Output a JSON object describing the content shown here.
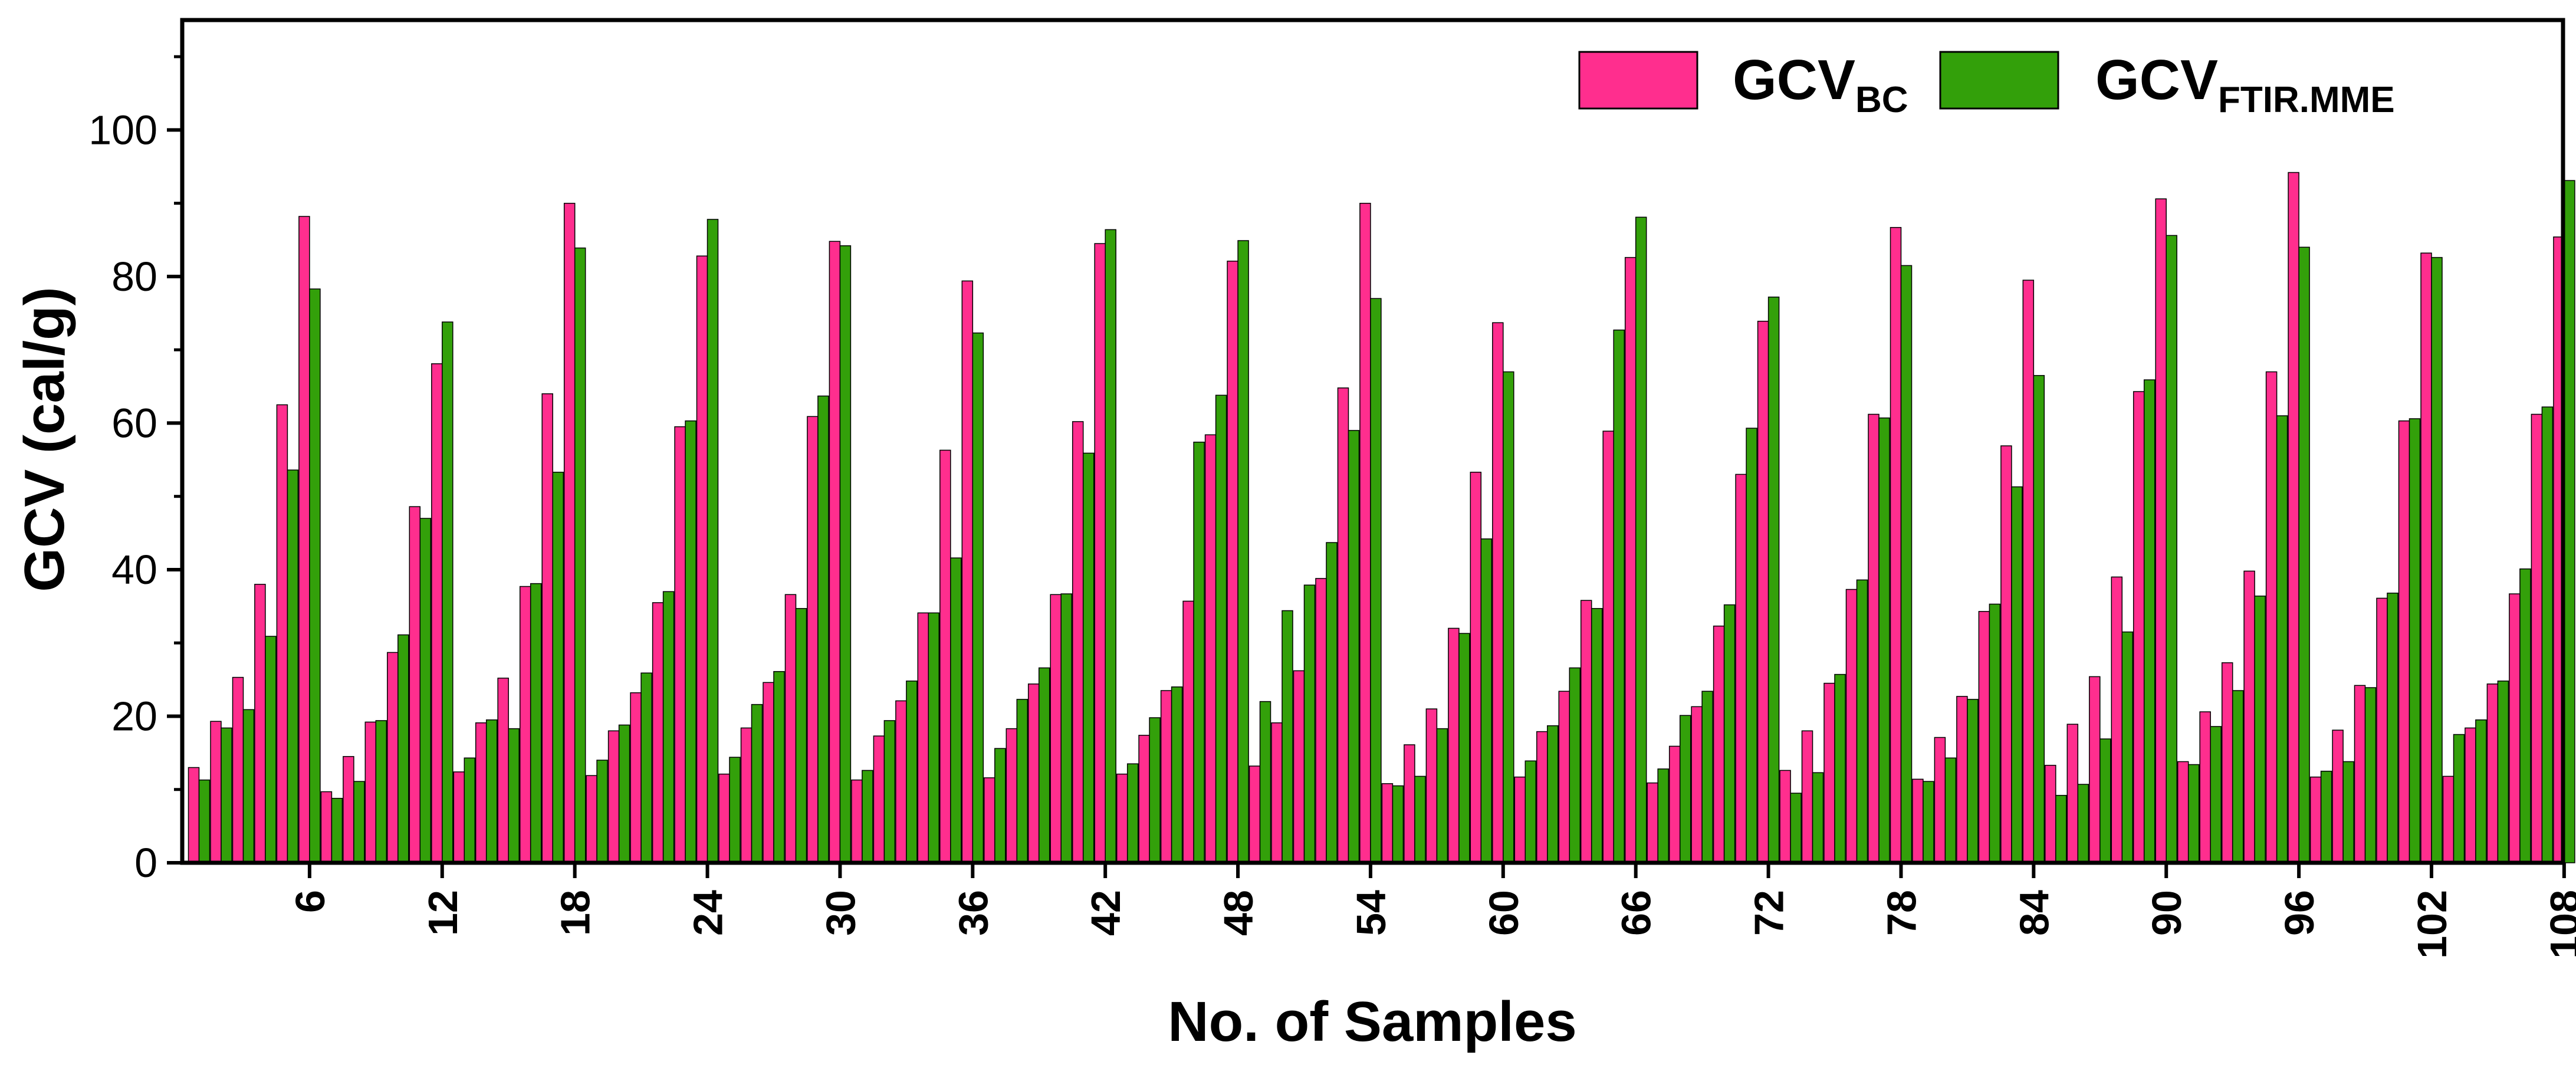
{
  "chart_data": {
    "type": "bar",
    "title": "",
    "xlabel": "No. of Samples",
    "ylabel": "GCV (cal/g)",
    "ylim": [
      0,
      115
    ],
    "yticks": [
      0,
      20,
      40,
      60,
      80,
      100
    ],
    "xtick_samples": [
      6,
      12,
      18,
      24,
      30,
      36,
      42,
      48,
      54,
      60,
      66,
      72,
      78,
      84,
      90,
      96,
      102,
      108
    ],
    "xtick_labels": [
      "6",
      "12",
      "18",
      "24",
      "30",
      "36",
      "42",
      "48",
      "54",
      "60",
      "66",
      "72",
      "78",
      "84",
      "90",
      "96",
      "102",
      "108"
    ],
    "sample_count": 108,
    "legend_position": "top-right",
    "series": [
      {
        "name": "GCV_BC",
        "legend_main": "GCV",
        "legend_sub": "BC",
        "color": "#ff2e8e",
        "values": [
          13.0,
          19.3,
          25.3,
          38.0,
          62.5,
          88.2,
          9.7,
          14.5,
          19.2,
          28.7,
          48.6,
          68.1,
          12.4,
          19.1,
          25.2,
          37.7,
          64.0,
          90.0,
          11.9,
          18.0,
          23.2,
          35.5,
          59.5,
          82.8,
          12.1,
          18.4,
          24.6,
          36.6,
          60.9,
          84.8,
          11.3,
          17.3,
          22.1,
          34.1,
          56.3,
          79.4,
          11.6,
          18.3,
          24.4,
          36.6,
          60.2,
          84.5,
          12.1,
          17.4,
          23.5,
          35.7,
          58.4,
          82.1,
          13.2,
          19.1,
          26.2,
          38.8,
          64.8,
          90.0,
          10.8,
          16.1,
          21.0,
          32.0,
          53.3,
          73.7,
          11.7,
          17.9,
          23.4,
          35.8,
          58.9,
          82.6,
          10.9,
          15.9,
          21.3,
          32.3,
          53.0,
          73.9,
          12.6,
          18.0,
          24.5,
          37.3,
          61.2,
          86.7,
          11.4,
          17.1,
          22.7,
          34.3,
          56.9,
          79.5,
          13.3,
          18.9,
          25.4,
          39.0,
          64.3,
          90.6,
          13.8,
          20.6,
          27.3,
          39.8,
          67.0,
          94.2,
          11.7,
          18.1,
          24.2,
          36.1,
          60.3,
          83.2,
          11.8,
          18.4,
          24.4,
          36.7,
          61.2,
          85.4
        ]
      },
      {
        "name": "GCV_FTIR.MME",
        "legend_main": "GCV",
        "legend_sub": "FTIR.MME",
        "color": "#33a00a",
        "values": [
          11.3,
          18.4,
          20.9,
          30.9,
          53.6,
          78.3,
          8.8,
          11.1,
          19.4,
          31.1,
          47.0,
          73.8,
          14.3,
          19.5,
          18.3,
          38.1,
          53.3,
          83.9,
          14.0,
          18.8,
          25.9,
          37.0,
          60.3,
          87.8,
          14.4,
          21.6,
          26.1,
          34.7,
          63.7,
          84.2,
          12.6,
          19.4,
          24.8,
          34.1,
          41.6,
          72.3,
          15.6,
          22.3,
          26.6,
          36.7,
          55.9,
          86.4,
          13.5,
          19.8,
          24.0,
          57.4,
          63.8,
          84.9,
          22.0,
          34.4,
          37.9,
          43.7,
          59.0,
          77.0,
          10.5,
          11.8,
          18.3,
          31.3,
          44.2,
          67.0,
          13.9,
          18.7,
          26.6,
          34.7,
          72.7,
          88.1,
          12.8,
          20.1,
          23.4,
          35.2,
          59.3,
          77.2,
          9.5,
          12.3,
          25.7,
          38.6,
          60.7,
          81.5,
          11.1,
          14.3,
          22.3,
          35.3,
          51.3,
          66.5,
          9.2,
          10.7,
          16.9,
          31.5,
          65.9,
          85.6,
          13.4,
          18.6,
          23.5,
          36.4,
          61.0,
          84.0,
          12.5,
          13.8,
          23.9,
          36.8,
          60.6,
          82.6,
          17.5,
          19.5,
          24.8,
          40.1,
          62.2,
          93.1
        ]
      }
    ]
  }
}
